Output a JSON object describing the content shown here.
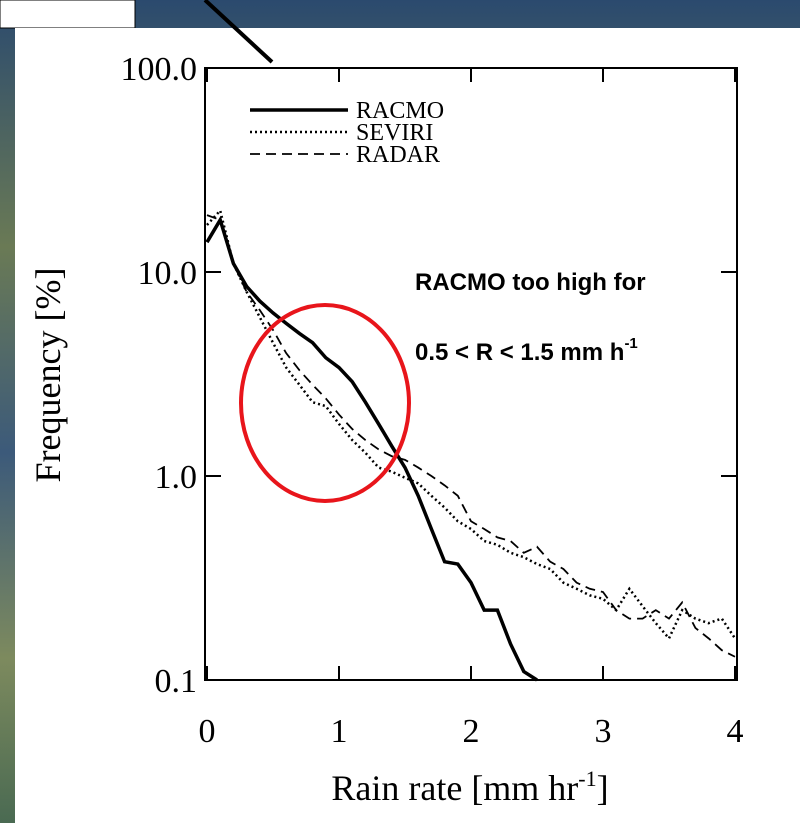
{
  "chart_data": {
    "type": "line",
    "ylabel": "Frequency [%]",
    "xlabel": {
      "text": "Rain rate [mm hr",
      "superscript": "-1",
      "suffix": "]"
    },
    "annotation": {
      "line1": "RACMO too high for",
      "line2": {
        "text": "0.5 < R < 1.5 mm h",
        "superscript": "-1"
      }
    },
    "log_y": true,
    "xlim": [
      0,
      4
    ],
    "ylim": [
      0.1,
      100
    ],
    "xticks": [
      0,
      1,
      2,
      3,
      4
    ],
    "yticks": [
      {
        "value": 100,
        "label": "100.0"
      },
      {
        "value": 10,
        "label": "10.0"
      },
      {
        "value": 1,
        "label": "1.0"
      },
      0.1
    ],
    "legend": "top-left",
    "x": [
      0,
      0.1,
      0.2,
      0.3,
      0.4,
      0.5,
      0.6,
      0.7,
      0.8,
      0.9,
      1.0,
      1.1,
      1.2,
      1.3,
      1.4,
      1.5,
      1.6,
      1.7,
      1.8,
      1.9,
      2.0,
      2.1,
      2.2,
      2.3,
      2.4,
      2.5,
      2.6,
      2.7,
      2.8,
      2.9,
      3.0,
      3.1,
      3.2,
      3.3,
      3.4,
      3.5,
      3.6,
      3.7,
      3.8,
      3.9,
      4.0
    ],
    "series": [
      {
        "name": "RACMO",
        "color": "#000000",
        "style": "solid",
        "values": [
          14,
          18,
          11,
          8.5,
          7.2,
          6.3,
          5.6,
          5.0,
          4.5,
          3.8,
          3.4,
          2.9,
          2.3,
          1.8,
          1.4,
          1.1,
          0.8,
          0.55,
          0.38,
          0.37,
          0.3,
          0.22,
          0.22,
          0.15,
          0.11,
          0.1,
          null,
          null,
          null,
          null,
          null,
          null,
          null,
          null,
          null,
          null,
          null,
          null,
          null,
          null,
          null
        ]
      },
      {
        "name": "SEVIRI",
        "color": "#000000",
        "style": "dotted",
        "values": [
          17,
          20,
          11,
          8,
          6,
          4.5,
          3.4,
          2.8,
          2.3,
          2.2,
          1.8,
          1.5,
          1.3,
          1.1,
          1.05,
          0.98,
          0.92,
          0.8,
          0.7,
          0.6,
          0.55,
          0.48,
          0.46,
          0.42,
          0.4,
          0.37,
          0.35,
          0.3,
          0.28,
          0.26,
          0.25,
          0.22,
          0.28,
          0.23,
          0.19,
          0.16,
          0.22,
          0.2,
          0.19,
          0.2,
          0.16
        ]
      },
      {
        "name": "RADAR",
        "color": "#000000",
        "style": "dashed",
        "values": [
          19,
          18,
          11,
          8,
          6.5,
          5.2,
          4,
          3.3,
          2.8,
          2.4,
          2.0,
          1.7,
          1.5,
          1.35,
          1.25,
          1.2,
          1.1,
          1.0,
          0.9,
          0.8,
          0.6,
          0.55,
          0.5,
          0.48,
          0.42,
          0.45,
          0.38,
          0.35,
          0.3,
          0.28,
          0.27,
          0.22,
          0.2,
          0.2,
          0.22,
          0.2,
          0.24,
          0.18,
          0.16,
          0.14,
          0.13
        ]
      }
    ]
  }
}
